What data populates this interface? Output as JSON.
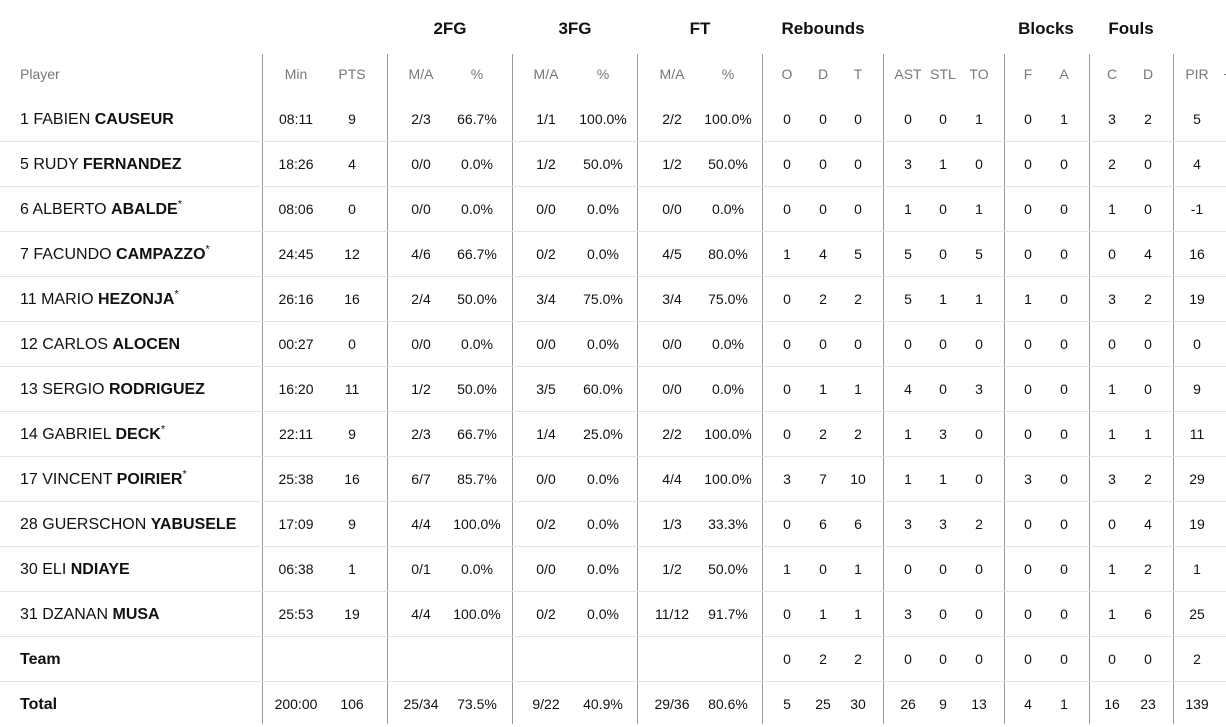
{
  "group_headers": {
    "fg2": "2FG",
    "fg3": "3FG",
    "ft": "FT",
    "rebounds": "Rebounds",
    "blocks": "Blocks",
    "fouls": "Fouls"
  },
  "columns": {
    "player": "Player",
    "min": "Min",
    "pts": "PTS",
    "fg2_ma": "M/A",
    "fg2_pct": "%",
    "fg3_ma": "M/A",
    "fg3_pct": "%",
    "ft_ma": "M/A",
    "ft_pct": "%",
    "reb_o": "O",
    "reb_d": "D",
    "reb_t": "T",
    "ast": "AST",
    "stl": "STL",
    "to": "TO",
    "blk_f": "F",
    "blk_a": "A",
    "foul_c": "C",
    "foul_d": "D",
    "pir": "PIR"
  },
  "players": [
    {
      "num": "1",
      "first": "FABIEN",
      "last": "CAUSEUR",
      "star": "",
      "min": "08:11",
      "pts": "9",
      "fg2_ma": "2/3",
      "fg2_pct": "66.7%",
      "fg3_ma": "1/1",
      "fg3_pct": "100.0%",
      "ft_ma": "2/2",
      "ft_pct": "100.0%",
      "reb_o": "0",
      "reb_d": "0",
      "reb_t": "0",
      "ast": "0",
      "stl": "0",
      "to": "1",
      "blk_f": "0",
      "blk_a": "1",
      "foul_c": "3",
      "foul_d": "2",
      "pir": "5"
    },
    {
      "num": "5",
      "first": "RUDY",
      "last": "FERNANDEZ",
      "star": "",
      "min": "18:26",
      "pts": "4",
      "fg2_ma": "0/0",
      "fg2_pct": "0.0%",
      "fg3_ma": "1/2",
      "fg3_pct": "50.0%",
      "ft_ma": "1/2",
      "ft_pct": "50.0%",
      "reb_o": "0",
      "reb_d": "0",
      "reb_t": "0",
      "ast": "3",
      "stl": "1",
      "to": "0",
      "blk_f": "0",
      "blk_a": "0",
      "foul_c": "2",
      "foul_d": "0",
      "pir": "4"
    },
    {
      "num": "6",
      "first": "ALBERTO",
      "last": "ABALDE",
      "star": "*",
      "min": "08:06",
      "pts": "0",
      "fg2_ma": "0/0",
      "fg2_pct": "0.0%",
      "fg3_ma": "0/0",
      "fg3_pct": "0.0%",
      "ft_ma": "0/0",
      "ft_pct": "0.0%",
      "reb_o": "0",
      "reb_d": "0",
      "reb_t": "0",
      "ast": "1",
      "stl": "0",
      "to": "1",
      "blk_f": "0",
      "blk_a": "0",
      "foul_c": "1",
      "foul_d": "0",
      "pir": "-1"
    },
    {
      "num": "7",
      "first": "FACUNDO",
      "last": "CAMPAZZO",
      "star": "*",
      "min": "24:45",
      "pts": "12",
      "fg2_ma": "4/6",
      "fg2_pct": "66.7%",
      "fg3_ma": "0/2",
      "fg3_pct": "0.0%",
      "ft_ma": "4/5",
      "ft_pct": "80.0%",
      "reb_o": "1",
      "reb_d": "4",
      "reb_t": "5",
      "ast": "5",
      "stl": "0",
      "to": "5",
      "blk_f": "0",
      "blk_a": "0",
      "foul_c": "0",
      "foul_d": "4",
      "pir": "16"
    },
    {
      "num": "11",
      "first": "MARIO",
      "last": "HEZONJA",
      "star": "*",
      "min": "26:16",
      "pts": "16",
      "fg2_ma": "2/4",
      "fg2_pct": "50.0%",
      "fg3_ma": "3/4",
      "fg3_pct": "75.0%",
      "ft_ma": "3/4",
      "ft_pct": "75.0%",
      "reb_o": "0",
      "reb_d": "2",
      "reb_t": "2",
      "ast": "5",
      "stl": "1",
      "to": "1",
      "blk_f": "1",
      "blk_a": "0",
      "foul_c": "3",
      "foul_d": "2",
      "pir": "19"
    },
    {
      "num": "12",
      "first": "CARLOS",
      "last": "ALOCEN",
      "star": "",
      "min": "00:27",
      "pts": "0",
      "fg2_ma": "0/0",
      "fg2_pct": "0.0%",
      "fg3_ma": "0/0",
      "fg3_pct": "0.0%",
      "ft_ma": "0/0",
      "ft_pct": "0.0%",
      "reb_o": "0",
      "reb_d": "0",
      "reb_t": "0",
      "ast": "0",
      "stl": "0",
      "to": "0",
      "blk_f": "0",
      "blk_a": "0",
      "foul_c": "0",
      "foul_d": "0",
      "pir": "0"
    },
    {
      "num": "13",
      "first": "SERGIO",
      "last": "RODRIGUEZ",
      "star": "",
      "min": "16:20",
      "pts": "11",
      "fg2_ma": "1/2",
      "fg2_pct": "50.0%",
      "fg3_ma": "3/5",
      "fg3_pct": "60.0%",
      "ft_ma": "0/0",
      "ft_pct": "0.0%",
      "reb_o": "0",
      "reb_d": "1",
      "reb_t": "1",
      "ast": "4",
      "stl": "0",
      "to": "3",
      "blk_f": "0",
      "blk_a": "0",
      "foul_c": "1",
      "foul_d": "0",
      "pir": "9"
    },
    {
      "num": "14",
      "first": "GABRIEL",
      "last": "DECK",
      "star": "*",
      "min": "22:11",
      "pts": "9",
      "fg2_ma": "2/3",
      "fg2_pct": "66.7%",
      "fg3_ma": "1/4",
      "fg3_pct": "25.0%",
      "ft_ma": "2/2",
      "ft_pct": "100.0%",
      "reb_o": "0",
      "reb_d": "2",
      "reb_t": "2",
      "ast": "1",
      "stl": "3",
      "to": "0",
      "blk_f": "0",
      "blk_a": "0",
      "foul_c": "1",
      "foul_d": "1",
      "pir": "11"
    },
    {
      "num": "17",
      "first": "VINCENT",
      "last": "POIRIER",
      "star": "*",
      "min": "25:38",
      "pts": "16",
      "fg2_ma": "6/7",
      "fg2_pct": "85.7%",
      "fg3_ma": "0/0",
      "fg3_pct": "0.0%",
      "ft_ma": "4/4",
      "ft_pct": "100.0%",
      "reb_o": "3",
      "reb_d": "7",
      "reb_t": "10",
      "ast": "1",
      "stl": "1",
      "to": "0",
      "blk_f": "3",
      "blk_a": "0",
      "foul_c": "3",
      "foul_d": "2",
      "pir": "29"
    },
    {
      "num": "28",
      "first": "GUERSCHON",
      "last": "YABUSELE",
      "star": "",
      "min": "17:09",
      "pts": "9",
      "fg2_ma": "4/4",
      "fg2_pct": "100.0%",
      "fg3_ma": "0/2",
      "fg3_pct": "0.0%",
      "ft_ma": "1/3",
      "ft_pct": "33.3%",
      "reb_o": "0",
      "reb_d": "6",
      "reb_t": "6",
      "ast": "3",
      "stl": "3",
      "to": "2",
      "blk_f": "0",
      "blk_a": "0",
      "foul_c": "0",
      "foul_d": "4",
      "pir": "19"
    },
    {
      "num": "30",
      "first": "ELI",
      "last": "NDIAYE",
      "star": "",
      "min": "06:38",
      "pts": "1",
      "fg2_ma": "0/1",
      "fg2_pct": "0.0%",
      "fg3_ma": "0/0",
      "fg3_pct": "0.0%",
      "ft_ma": "1/2",
      "ft_pct": "50.0%",
      "reb_o": "1",
      "reb_d": "0",
      "reb_t": "1",
      "ast": "0",
      "stl": "0",
      "to": "0",
      "blk_f": "0",
      "blk_a": "0",
      "foul_c": "1",
      "foul_d": "2",
      "pir": "1"
    },
    {
      "num": "31",
      "first": "DZANAN",
      "last": "MUSA",
      "star": "",
      "min": "25:53",
      "pts": "19",
      "fg2_ma": "4/4",
      "fg2_pct": "100.0%",
      "fg3_ma": "0/2",
      "fg3_pct": "0.0%",
      "ft_ma": "11/12",
      "ft_pct": "91.7%",
      "reb_o": "0",
      "reb_d": "1",
      "reb_t": "1",
      "ast": "3",
      "stl": "0",
      "to": "0",
      "blk_f": "0",
      "blk_a": "0",
      "foul_c": "1",
      "foul_d": "6",
      "pir": "25"
    }
  ],
  "team": {
    "label": "Team",
    "min": "",
    "pts": "",
    "fg2_ma": "",
    "fg2_pct": "",
    "fg3_ma": "",
    "fg3_pct": "",
    "ft_ma": "",
    "ft_pct": "",
    "reb_o": "0",
    "reb_d": "2",
    "reb_t": "2",
    "ast": "0",
    "stl": "0",
    "to": "0",
    "blk_f": "0",
    "blk_a": "0",
    "foul_c": "0",
    "foul_d": "0",
    "pir": "2"
  },
  "total": {
    "label": "Total",
    "min": "200:00",
    "pts": "106",
    "fg2_ma": "25/34",
    "fg2_pct": "73.5%",
    "fg3_ma": "9/22",
    "fg3_pct": "40.9%",
    "ft_ma": "29/36",
    "ft_pct": "80.6%",
    "reb_o": "5",
    "reb_d": "25",
    "reb_t": "30",
    "ast": "26",
    "stl": "9",
    "to": "13",
    "blk_f": "4",
    "blk_a": "1",
    "foul_c": "16",
    "foul_d": "23",
    "pir": "139"
  }
}
